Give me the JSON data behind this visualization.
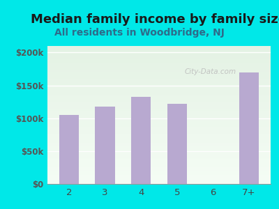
{
  "categories": [
    "2",
    "3",
    "4",
    "5",
    "6",
    "7+"
  ],
  "values": [
    105000,
    118000,
    133000,
    122000,
    0,
    170000
  ],
  "bar_color": "#b8a9d0",
  "title": "Median family income by family size",
  "subtitle": "All residents in Woodbridge, NJ",
  "title_fontsize": 13,
  "subtitle_fontsize": 10,
  "title_color": "#1a1a1a",
  "subtitle_color": "#2e6b8a",
  "ylabel_ticks": [
    0,
    50000,
    100000,
    150000,
    200000
  ],
  "ytick_labels": [
    "$0",
    "$50k",
    "$100k",
    "$150k",
    "$200k"
  ],
  "ylim": [
    0,
    210000
  ],
  "bg_outer": "#00e8e8",
  "bg_inner_top": "#e4f2e4",
  "bg_inner_bottom": "#f5fdf5",
  "watermark": "City-Data.com",
  "xlabel_color": "#444444",
  "ytick_color": "#555555"
}
